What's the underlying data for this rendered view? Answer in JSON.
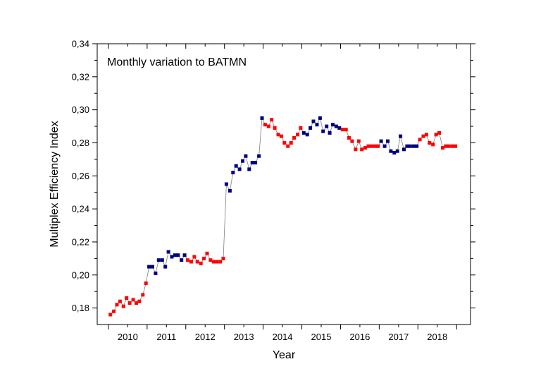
{
  "chart_data": {
    "type": "scatter",
    "title": "",
    "annotation": "Monthly variation to BATMN",
    "xlabel": "Year",
    "ylabel": "Multiplex Efficiency Index",
    "xlim": [
      2009.45,
      2019.1
    ],
    "ylim": [
      0.17,
      0.34
    ],
    "x_ticks": [
      {
        "value": 2009.74,
        "label": ""
      },
      {
        "value": 2010.74,
        "label": "2010"
      },
      {
        "value": 2011.74,
        "label": "2011"
      },
      {
        "value": 2012.74,
        "label": "2012"
      },
      {
        "value": 2013.74,
        "label": "2013"
      },
      {
        "value": 2014.74,
        "label": "2014"
      },
      {
        "value": 2015.74,
        "label": "2015"
      },
      {
        "value": 2016.74,
        "label": "2016"
      },
      {
        "value": 2017.74,
        "label": "2017"
      },
      {
        "value": 2018.74,
        "label": "2018"
      }
    ],
    "y_ticks": [
      "0,18",
      "0,20",
      "0,22",
      "0,24",
      "0,26",
      "0,28",
      "0,30",
      "0,32",
      "0,34"
    ],
    "y_tick_values": [
      0.18,
      0.2,
      0.22,
      0.24,
      0.26,
      0.28,
      0.3,
      0.32,
      0.34
    ],
    "colors": {
      "red": "#ff0000",
      "blue": "#000080",
      "line": "#808080",
      "axis": "#000000"
    },
    "series": [
      {
        "name": "2010",
        "color": "red",
        "points": [
          [
            2009.79,
            0.176
          ],
          [
            2009.88,
            0.178
          ],
          [
            2009.96,
            0.182
          ],
          [
            2010.04,
            0.184
          ],
          [
            2010.13,
            0.181
          ],
          [
            2010.21,
            0.186
          ],
          [
            2010.29,
            0.183
          ],
          [
            2010.38,
            0.185
          ],
          [
            2010.46,
            0.183
          ],
          [
            2010.54,
            0.184
          ],
          [
            2010.63,
            0.188
          ],
          [
            2010.71,
            0.195
          ]
        ]
      },
      {
        "name": "2011",
        "color": "blue",
        "points": [
          [
            2010.79,
            0.205
          ],
          [
            2010.88,
            0.205
          ],
          [
            2010.96,
            0.201
          ],
          [
            2011.04,
            0.209
          ],
          [
            2011.13,
            0.209
          ],
          [
            2011.21,
            0.205
          ],
          [
            2011.29,
            0.214
          ],
          [
            2011.38,
            0.211
          ],
          [
            2011.46,
            0.212
          ],
          [
            2011.54,
            0.212
          ],
          [
            2011.63,
            0.209
          ],
          [
            2011.71,
            0.212
          ]
        ]
      },
      {
        "name": "2012",
        "color": "red",
        "points": [
          [
            2011.79,
            0.209
          ],
          [
            2011.88,
            0.208
          ],
          [
            2011.96,
            0.211
          ],
          [
            2012.04,
            0.208
          ],
          [
            2012.13,
            0.207
          ],
          [
            2012.21,
            0.21
          ],
          [
            2012.29,
            0.213
          ],
          [
            2012.38,
            0.209
          ],
          [
            2012.46,
            0.208
          ],
          [
            2012.54,
            0.208
          ],
          [
            2012.63,
            0.208
          ],
          [
            2012.71,
            0.21
          ]
        ]
      },
      {
        "name": "2013",
        "color": "blue",
        "points": [
          [
            2012.79,
            0.255
          ],
          [
            2012.88,
            0.251
          ],
          [
            2012.96,
            0.262
          ],
          [
            2013.04,
            0.266
          ],
          [
            2013.13,
            0.264
          ],
          [
            2013.21,
            0.269
          ],
          [
            2013.29,
            0.272
          ],
          [
            2013.38,
            0.264
          ],
          [
            2013.46,
            0.268
          ],
          [
            2013.54,
            0.268
          ],
          [
            2013.63,
            0.272
          ],
          [
            2013.71,
            0.295
          ]
        ]
      },
      {
        "name": "2014",
        "color": "red",
        "points": [
          [
            2013.79,
            0.291
          ],
          [
            2013.88,
            0.29
          ],
          [
            2013.96,
            0.294
          ],
          [
            2014.04,
            0.289
          ],
          [
            2014.13,
            0.285
          ],
          [
            2014.21,
            0.284
          ],
          [
            2014.29,
            0.28
          ],
          [
            2014.38,
            0.278
          ],
          [
            2014.46,
            0.28
          ],
          [
            2014.54,
            0.283
          ],
          [
            2014.63,
            0.285
          ],
          [
            2014.71,
            0.289
          ]
        ]
      },
      {
        "name": "2015",
        "color": "blue",
        "points": [
          [
            2014.79,
            0.286
          ],
          [
            2014.88,
            0.285
          ],
          [
            2014.96,
            0.289
          ],
          [
            2015.04,
            0.293
          ],
          [
            2015.13,
            0.291
          ],
          [
            2015.21,
            0.295
          ],
          [
            2015.29,
            0.287
          ],
          [
            2015.38,
            0.29
          ],
          [
            2015.46,
            0.286
          ],
          [
            2015.54,
            0.291
          ],
          [
            2015.63,
            0.29
          ],
          [
            2015.71,
            0.289
          ]
        ]
      },
      {
        "name": "2016",
        "color": "red",
        "points": [
          [
            2015.79,
            0.288
          ],
          [
            2015.88,
            0.288
          ],
          [
            2015.96,
            0.283
          ],
          [
            2016.04,
            0.281
          ],
          [
            2016.13,
            0.276
          ],
          [
            2016.21,
            0.281
          ],
          [
            2016.29,
            0.276
          ],
          [
            2016.38,
            0.277
          ],
          [
            2016.46,
            0.278
          ],
          [
            2016.54,
            0.278
          ],
          [
            2016.63,
            0.278
          ],
          [
            2016.71,
            0.278
          ]
        ]
      },
      {
        "name": "2017",
        "color": "blue",
        "points": [
          [
            2016.79,
            0.281
          ],
          [
            2016.88,
            0.278
          ],
          [
            2016.96,
            0.281
          ],
          [
            2017.04,
            0.275
          ],
          [
            2017.13,
            0.274
          ],
          [
            2017.21,
            0.275
          ],
          [
            2017.29,
            0.284
          ],
          [
            2017.38,
            0.276
          ],
          [
            2017.46,
            0.278
          ],
          [
            2017.54,
            0.278
          ],
          [
            2017.63,
            0.278
          ],
          [
            2017.71,
            0.278
          ]
        ]
      },
      {
        "name": "2018",
        "color": "red",
        "points": [
          [
            2017.79,
            0.282
          ],
          [
            2017.88,
            0.284
          ],
          [
            2017.96,
            0.285
          ],
          [
            2018.04,
            0.28
          ],
          [
            2018.13,
            0.279
          ],
          [
            2018.21,
            0.285
          ],
          [
            2018.29,
            0.286
          ],
          [
            2018.38,
            0.277
          ],
          [
            2018.46,
            0.278
          ],
          [
            2018.54,
            0.278
          ],
          [
            2018.63,
            0.278
          ],
          [
            2018.71,
            0.278
          ]
        ]
      }
    ]
  }
}
